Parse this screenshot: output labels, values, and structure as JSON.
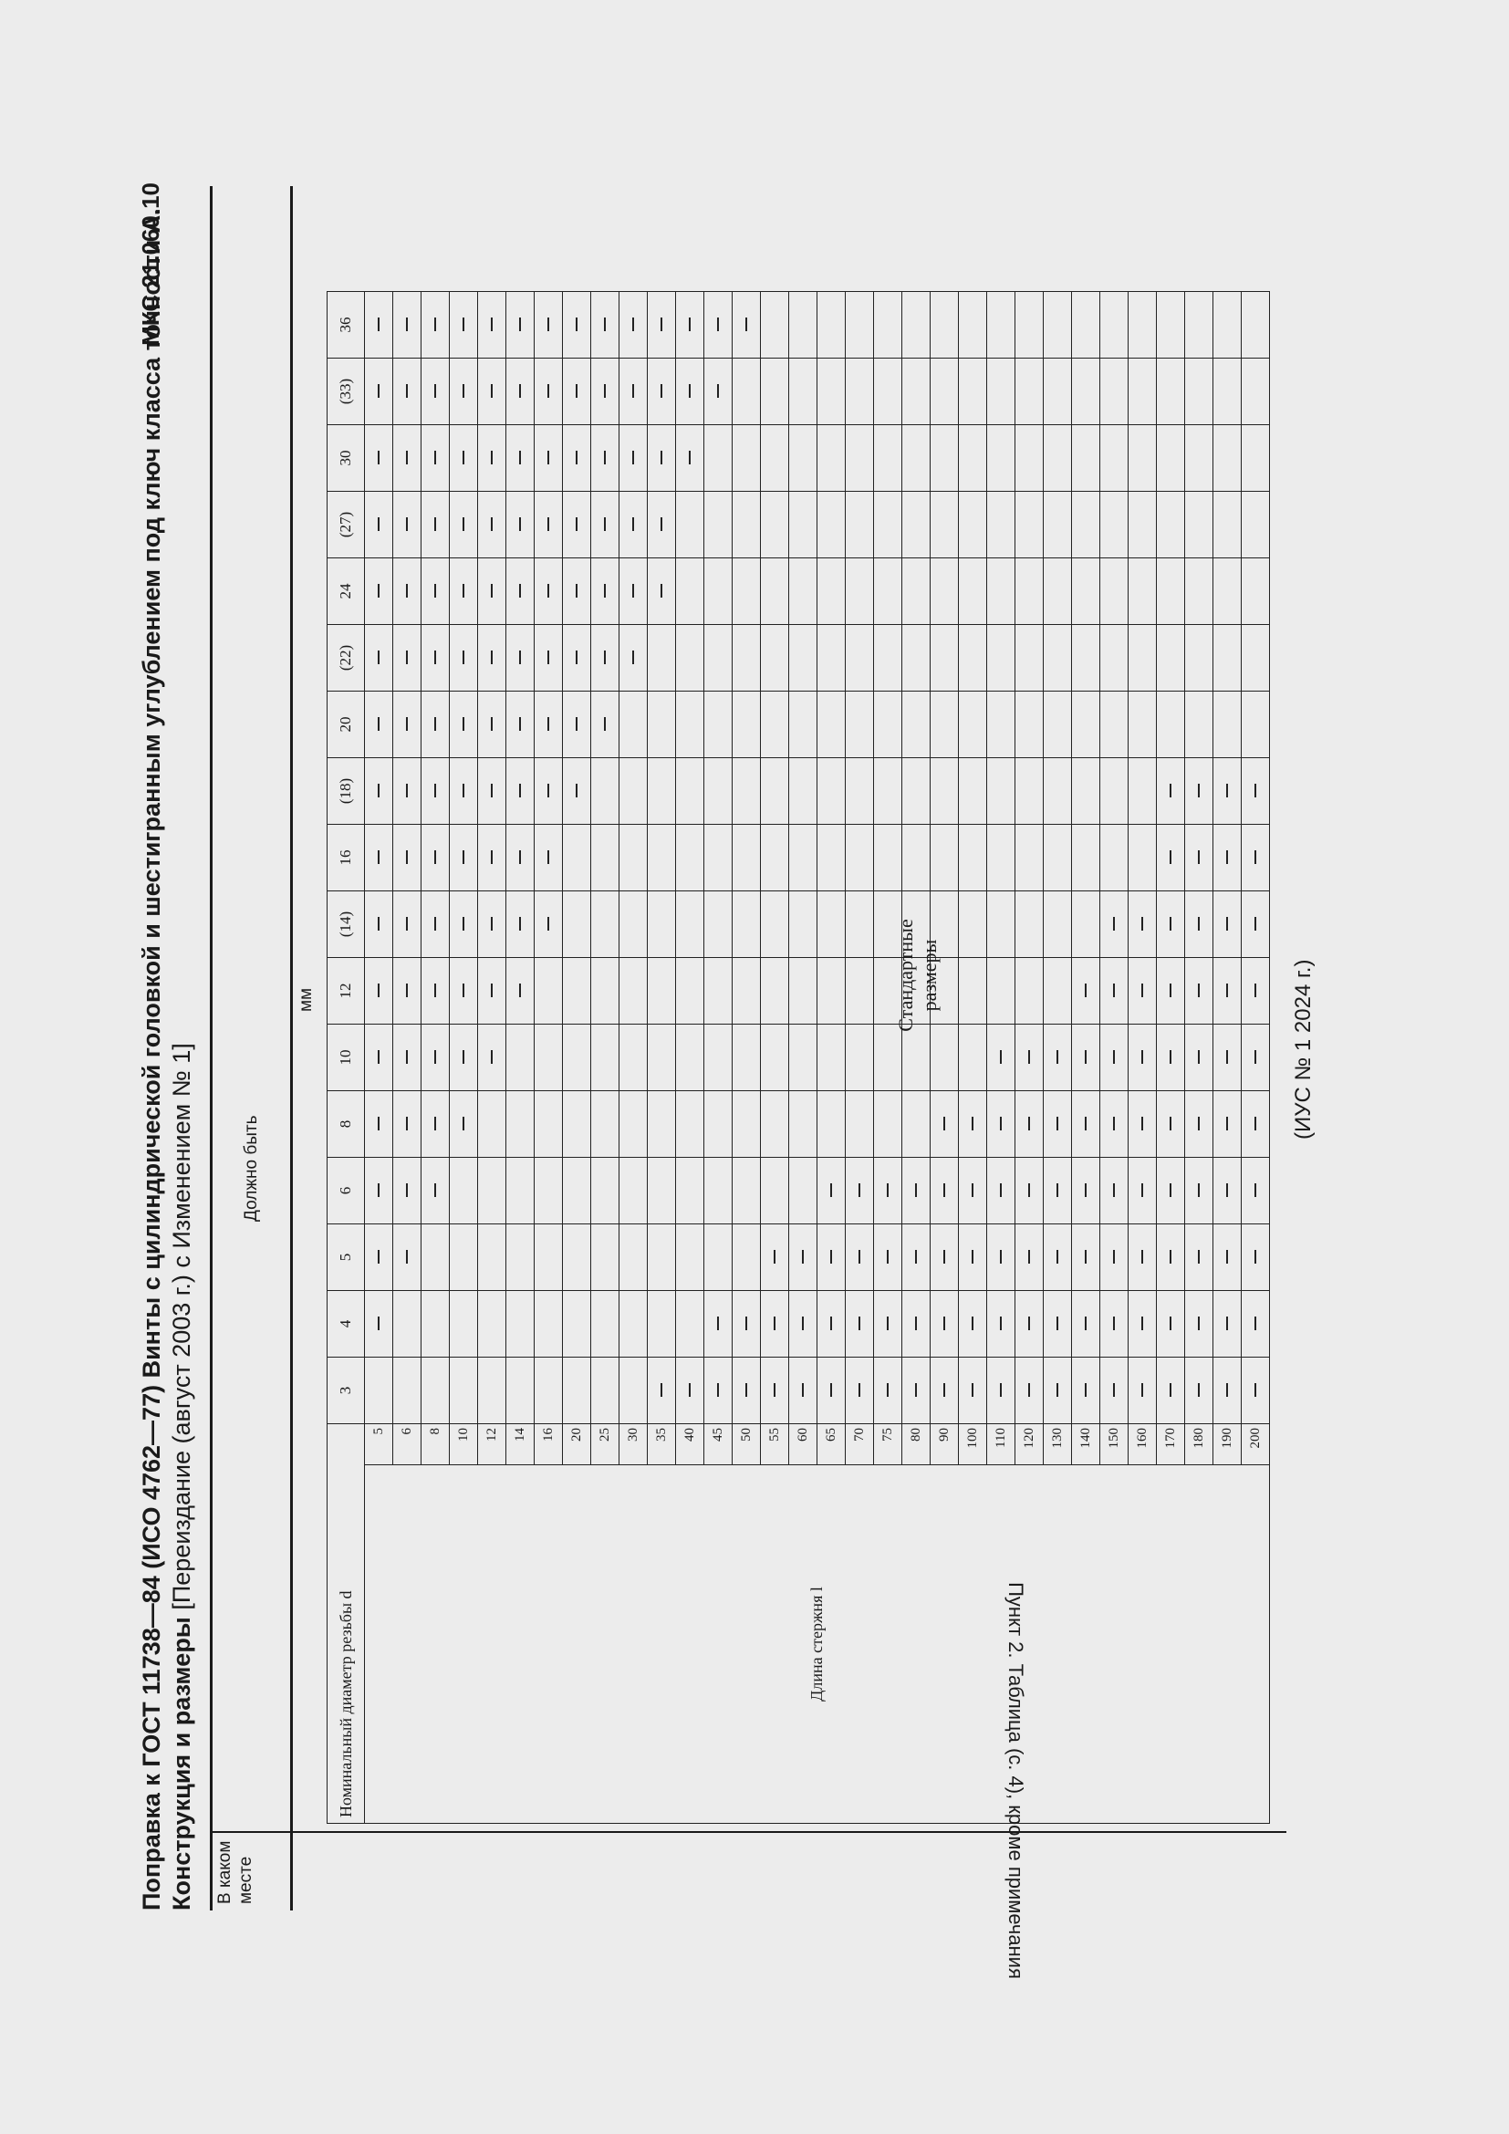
{
  "header": {
    "mks": "МКС 21.060.10",
    "title_bold": "Поправка к ГОСТ 11738—84 (ИСО 4762—77) Винты с цилиндрической головкой и шестигранным углублением под ключ класса точности А. Конструкция и размеры",
    "title_rest": " [Переиздание (август 2003 г.) с Изменением № 1]"
  },
  "columns": {
    "where": "В каком месте",
    "should_be": "Должно быть"
  },
  "where_value": "Пункт 2. Таблица (с. 4), кроме примечания",
  "units": "мм",
  "table": {
    "diameter_label": "Номинальный диаметр резьбы d",
    "length_label": "Длина стержня l",
    "diameters": [
      "3",
      "4",
      "5",
      "6",
      "8",
      "10",
      "12",
      "(14)",
      "16",
      "(18)",
      "20",
      "(22)",
      "24",
      "(27)",
      "30",
      "(33)",
      "36"
    ],
    "lengths": [
      "5",
      "6",
      "8",
      "10",
      "12",
      "14",
      "16",
      "20",
      "25",
      "30",
      "35",
      "40",
      "45",
      "50",
      "55",
      "60",
      "65",
      "70",
      "75",
      "80",
      "90",
      "100",
      "110",
      "120",
      "130",
      "140",
      "150",
      "160",
      "170",
      "180",
      "190",
      "200"
    ],
    "short_dash_upto_index": [
      -1,
      0,
      1,
      2,
      3,
      4,
      5,
      6,
      6,
      7,
      8,
      9,
      10,
      10,
      11,
      12,
      13
    ],
    "long_dash_from_index": [
      10,
      12,
      14,
      16,
      20,
      22,
      25,
      26,
      28,
      28,
      99,
      99,
      99,
      99,
      99,
      99,
      99
    ],
    "standard_sizes_label": "Стандартные размеры",
    "dash_symbol": "—"
  },
  "footer": "(ИУС № 1 2024 г.)"
}
